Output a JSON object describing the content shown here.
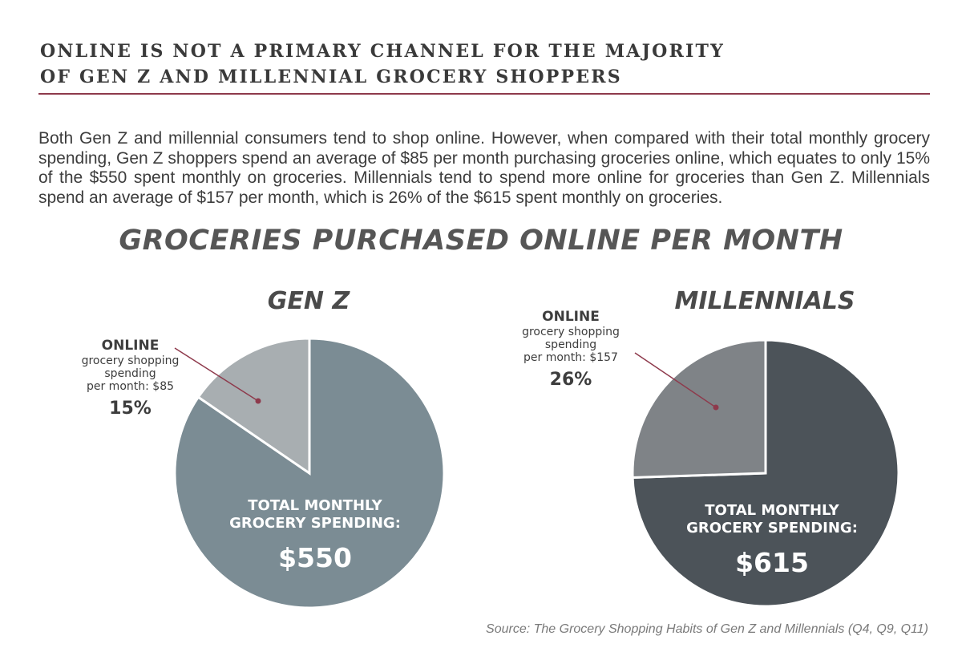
{
  "heading": {
    "line1": "ONLINE IS NOT A PRIMARY CHANNEL FOR THE MAJORITY",
    "line2": "OF GEN Z AND MILLENNIAL GROCERY SHOPPERS"
  },
  "intro": "Both Gen Z and millennial consumers tend to shop online. However, when compared with their total monthly grocery spending, Gen Z shoppers spend an average of $85 per month purchasing groceries online, which equates to only 15% of the $550 spent monthly on groceries.  Millennials tend to spend more online for groceries than Gen Z.  Millennials spend an average of $157 per month, which is 26% of the $615 spent monthly on groceries.",
  "colors": {
    "accent": "#8e3a4c",
    "genz_total": "#7b8c94",
    "genz_online": "#a8aeb1",
    "mill_total": "#4c5359",
    "mill_online": "#7f8387"
  },
  "chart_data": {
    "type": "pie",
    "title": "GROCERIES PURCHASED ONLINE PER MONTH",
    "charts": [
      {
        "key": "genz",
        "title": "GEN Z",
        "online": {
          "label": "ONLINE",
          "desc_lines": [
            "grocery shopping",
            "spending",
            "per month: $85"
          ],
          "percent_label": "15%",
          "amount": 85,
          "percent": 15
        },
        "total": {
          "label_lines": [
            "TOTAL MONTHLY",
            "GROCERY SPENDING:"
          ],
          "amount_label": "$550",
          "amount": 550
        }
      },
      {
        "key": "millennials",
        "title": "MILLENNIALS",
        "online": {
          "label": "ONLINE",
          "desc_lines": [
            "grocery shopping",
            "spending",
            "per month: $157"
          ],
          "percent_label": "26%",
          "amount": 157,
          "percent": 26
        },
        "total": {
          "label_lines": [
            "TOTAL MONTHLY",
            "GROCERY SPENDING:"
          ],
          "amount_label": "$615",
          "amount": 615
        }
      }
    ]
  },
  "source": "Source: The Grocery Shopping Habits of Gen Z and Millennials (Q4, Q9, Q11)"
}
